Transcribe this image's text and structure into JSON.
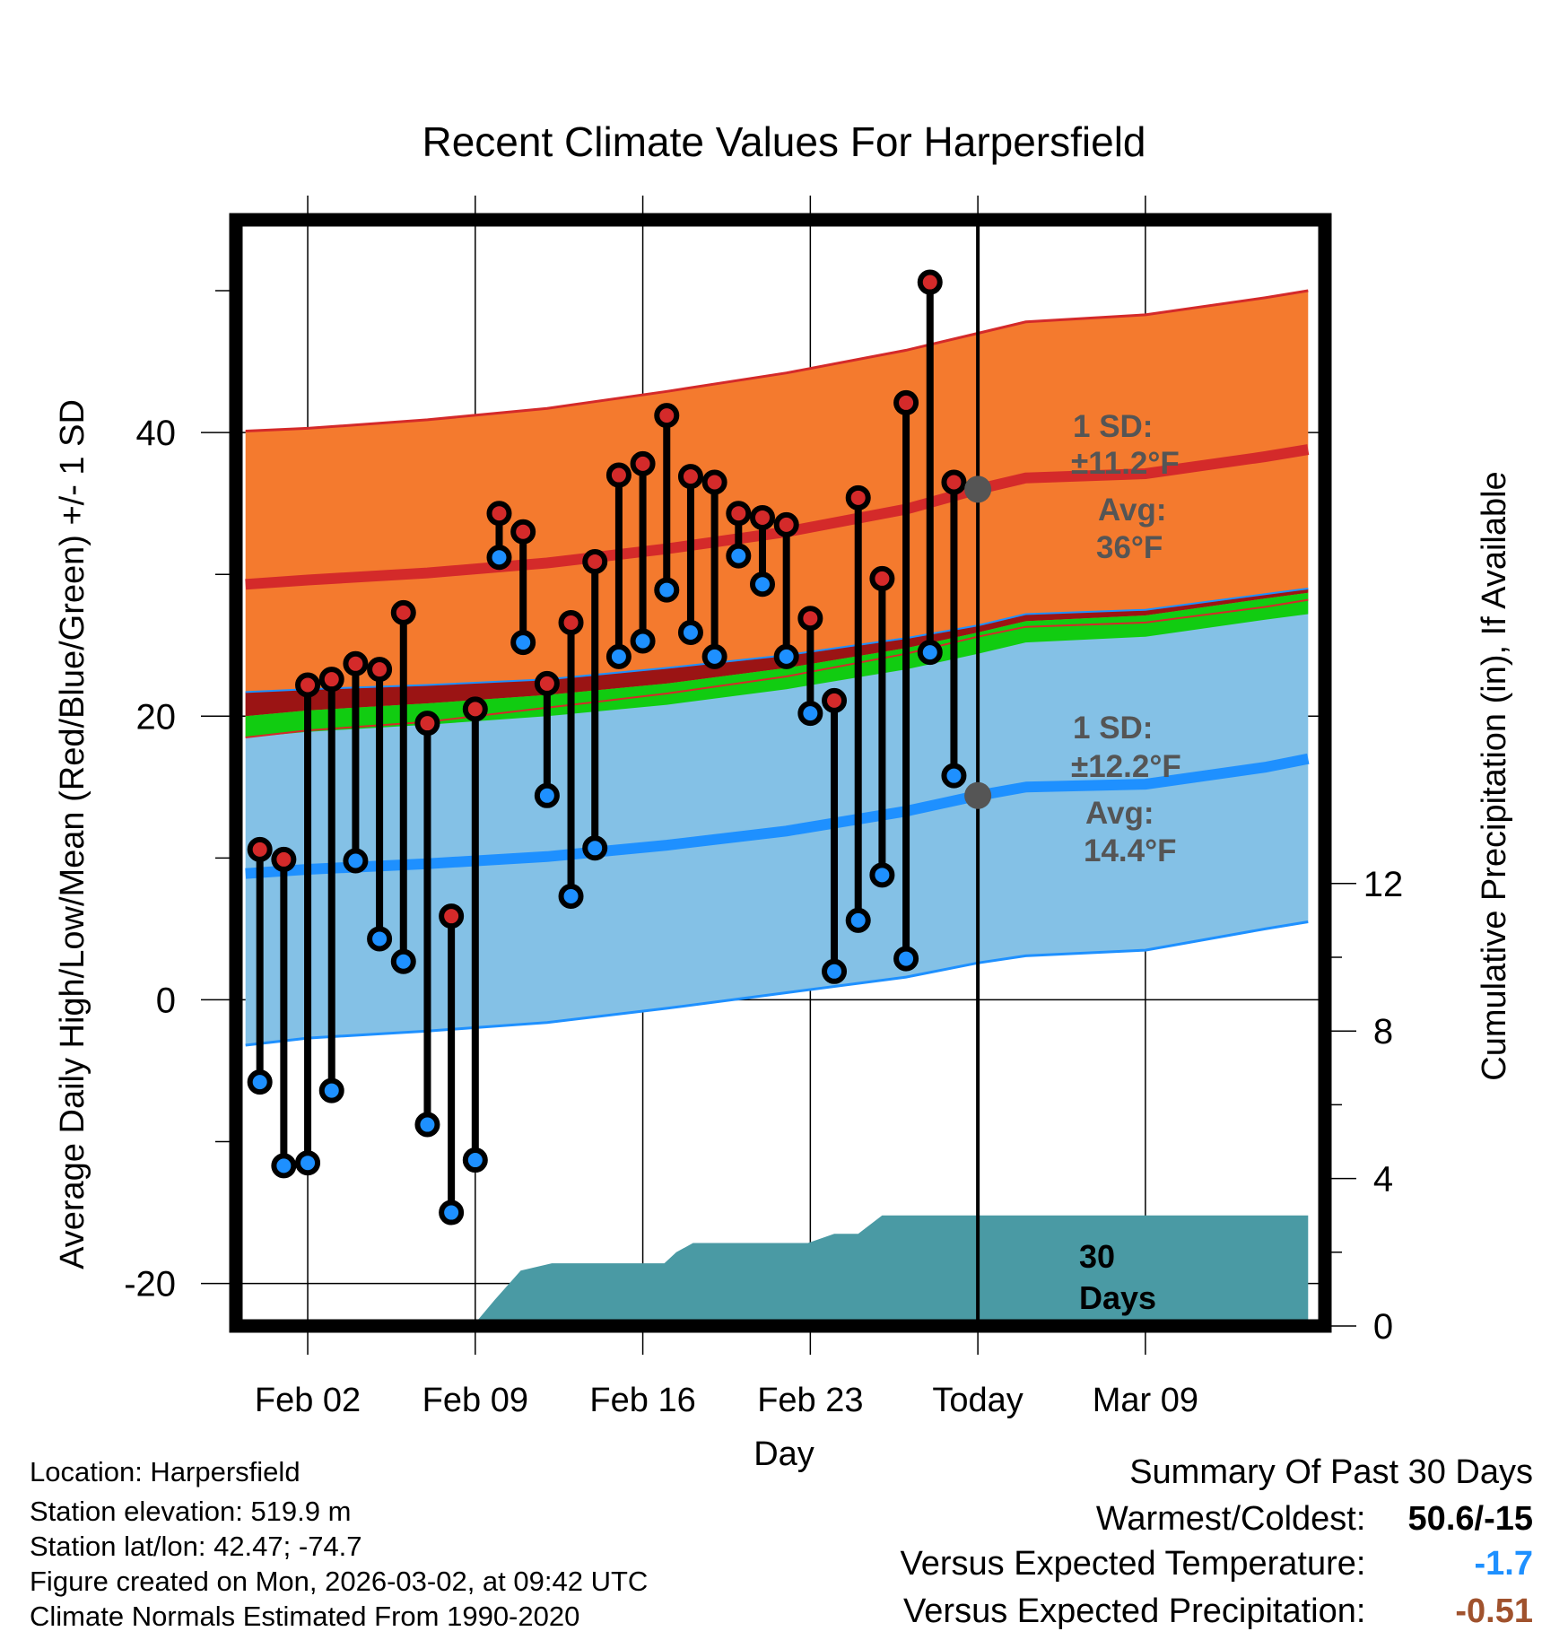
{
  "colors": {
    "high_band": "#f47a2e",
    "high_line": "#d42a2a",
    "low_band": "#84c1e6",
    "low_line": "#1e90ff",
    "mean_dark": "#9b1414",
    "mean_green": "#11cc11",
    "precip": "#4a9aa4",
    "marker_high": "#d42a2a",
    "marker_low": "#1e90ff",
    "annotation": "#555555",
    "vs_temp": "#1e90ff",
    "vs_precip": "#a0522d"
  },
  "chart_data": {
    "type": "line",
    "title": "Recent Climate Values For Harpersfield",
    "xlabel": "Day",
    "ylabel": "Average Daily High/Low/Mean (Red/Blue/Green) +/- 1 SD",
    "y2label": "Cumulative Precipitation (in), If Available",
    "xlim": [
      -3,
      42.5
    ],
    "ylim": [
      -23,
      55
    ],
    "y2lim": [
      0,
      30
    ],
    "yticks": [
      -20,
      0,
      20,
      40
    ],
    "y2ticks": [
      0,
      4,
      8,
      12
    ],
    "xticks": [
      {
        "day": 0,
        "label": "Feb 02"
      },
      {
        "day": 7,
        "label": "Feb 09"
      },
      {
        "day": 14,
        "label": "Feb 16"
      },
      {
        "day": 21,
        "label": "Feb 23"
      },
      {
        "day": 28,
        "label": "Today"
      },
      {
        "day": 35,
        "label": "Mar 09"
      }
    ],
    "today_day": 28,
    "normals_x": [
      -2.6,
      0,
      5,
      10,
      15,
      20,
      25,
      28,
      30,
      35,
      40,
      41.8
    ],
    "normals": {
      "high_upper": [
        40.1,
        40.3,
        40.9,
        41.7,
        42.9,
        44.2,
        45.8,
        47.0,
        47.8,
        48.3,
        49.5,
        50.0
      ],
      "high_mean": [
        29.3,
        29.6,
        30.1,
        30.8,
        31.8,
        33.0,
        34.6,
        36.0,
        36.8,
        37.1,
        38.3,
        38.8
      ],
      "high_lower": [
        18.5,
        19.0,
        19.6,
        20.6,
        21.6,
        22.8,
        24.4,
        25.6,
        26.3,
        26.6,
        27.7,
        28.2
      ],
      "low_upper": [
        21.7,
        21.9,
        22.2,
        22.6,
        23.4,
        24.3,
        25.5,
        26.4,
        27.2,
        27.5,
        28.6,
        29.0
      ],
      "low_mean": [
        8.9,
        9.2,
        9.6,
        10.1,
        10.9,
        11.9,
        13.3,
        14.4,
        15.0,
        15.2,
        16.4,
        17.0
      ],
      "low_lower": [
        -3.2,
        -2.7,
        -2.2,
        -1.6,
        -0.6,
        0.5,
        1.6,
        2.6,
        3.1,
        3.5,
        5.0,
        5.5
      ],
      "mean_mean": [
        19.7,
        20.1,
        20.6,
        21.2,
        22.0,
        23.1,
        24.5,
        25.6,
        26.4,
        26.8,
        28.0,
        28.4
      ]
    },
    "series": [
      {
        "name": "Daily High",
        "x": [
          -2,
          -1,
          0,
          1,
          2,
          3,
          4,
          5,
          6,
          7,
          8,
          9,
          10,
          11,
          12,
          13,
          14,
          15,
          16,
          17,
          18,
          19,
          20,
          21,
          22,
          23,
          24,
          25,
          26,
          27
        ],
        "values": [
          10.6,
          9.9,
          22.2,
          22.6,
          23.7,
          23.3,
          27.3,
          19.5,
          5.9,
          20.5,
          34.3,
          33.0,
          22.3,
          26.6,
          30.9,
          37.0,
          37.8,
          41.2,
          36.9,
          36.5,
          34.3,
          34.0,
          33.5,
          26.9,
          21.1,
          35.4,
          29.7,
          42.1,
          50.6,
          36.5
        ]
      },
      {
        "name": "Daily Low",
        "x": [
          -2,
          -1,
          0,
          1,
          2,
          3,
          4,
          5,
          6,
          7,
          8,
          9,
          10,
          11,
          12,
          13,
          14,
          15,
          16,
          17,
          18,
          19,
          20,
          21,
          22,
          23,
          24,
          25,
          26,
          27
        ],
        "values": [
          -5.8,
          -11.7,
          -11.5,
          -6.4,
          9.8,
          4.3,
          2.7,
          -8.8,
          -15.0,
          -11.3,
          31.2,
          25.2,
          14.4,
          7.3,
          10.7,
          24.2,
          25.3,
          28.9,
          25.9,
          24.2,
          31.3,
          29.3,
          24.2,
          20.2,
          2.0,
          5.6,
          8.8,
          2.9,
          24.5,
          15.8
        ]
      },
      {
        "name": "Cumulative Precipitation",
        "x": [
          6.9,
          7.8,
          8.9,
          10.2,
          12.9,
          14.9,
          15.4,
          16.1,
          17.6,
          18.4,
          20.0,
          20.9,
          22.0,
          23.0,
          24.0,
          28.0,
          41.8
        ],
        "values": [
          0,
          0.7,
          1.5,
          1.7,
          1.7,
          1.7,
          2.0,
          2.25,
          2.25,
          2.25,
          2.25,
          2.25,
          2.5,
          2.5,
          3.0,
          3.0,
          3.0
        ]
      }
    ],
    "annotations": {
      "high_sd_label": "1 SD:",
      "high_sd_value": "±11.2°F",
      "high_avg_label": "Avg:",
      "high_avg_value": "36°F",
      "high_avg": 36.0,
      "low_sd_label": "1 SD:",
      "low_sd_value": "±12.2°F",
      "low_avg_label": "Avg:",
      "low_avg_value": "14.4°F",
      "low_avg": 14.4,
      "days_number": "30",
      "days_label": "Days"
    }
  },
  "info": {
    "location": "Location: Harpersfield",
    "elevation": "Station elevation: 519.9 m",
    "latlon": "Station lat/lon: 42.47; -74.7",
    "created": "Figure created on Mon, 2026-03-02, at 09:42 UTC",
    "normals": "Climate Normals Estimated From 1990-2020"
  },
  "summary": {
    "heading": "Summary Of Past 30 Days",
    "warm_cold_label": "Warmest/Coldest:",
    "warm_cold_value": "50.6/-15",
    "vs_temp_label": "Versus Expected Temperature:",
    "vs_temp_value": "-1.7",
    "vs_precip_label": "Versus Expected Precipitation:",
    "vs_precip_value": "-0.51"
  }
}
